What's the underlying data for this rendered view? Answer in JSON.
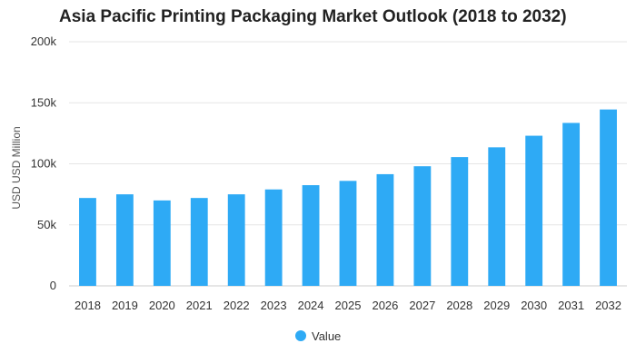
{
  "chart_data": {
    "type": "bar",
    "title": "Asia Pacific Printing Packaging Market Outlook (2018 to 2032)",
    "xlabel": "",
    "ylabel": "USD USD Million",
    "categories": [
      "2018",
      "2019",
      "2020",
      "2021",
      "2022",
      "2023",
      "2024",
      "2025",
      "2026",
      "2027",
      "2028",
      "2029",
      "2030",
      "2031",
      "2032"
    ],
    "series": [
      {
        "name": "Value",
        "color": "#2eaaf5",
        "values": [
          72000,
          75000,
          70000,
          72000,
          75000,
          79000,
          82500,
          86000,
          91500,
          98000,
          105500,
          113500,
          123000,
          133500,
          144500
        ]
      }
    ],
    "ylim": [
      0,
      200000
    ],
    "yticks": [
      {
        "value": 0,
        "label": "0"
      },
      {
        "value": 50000,
        "label": "50k"
      },
      {
        "value": 100000,
        "label": "100k"
      },
      {
        "value": 150000,
        "label": "150k"
      },
      {
        "value": 200000,
        "label": "200k"
      }
    ],
    "grid": true,
    "legend_position": "bottom-center"
  }
}
